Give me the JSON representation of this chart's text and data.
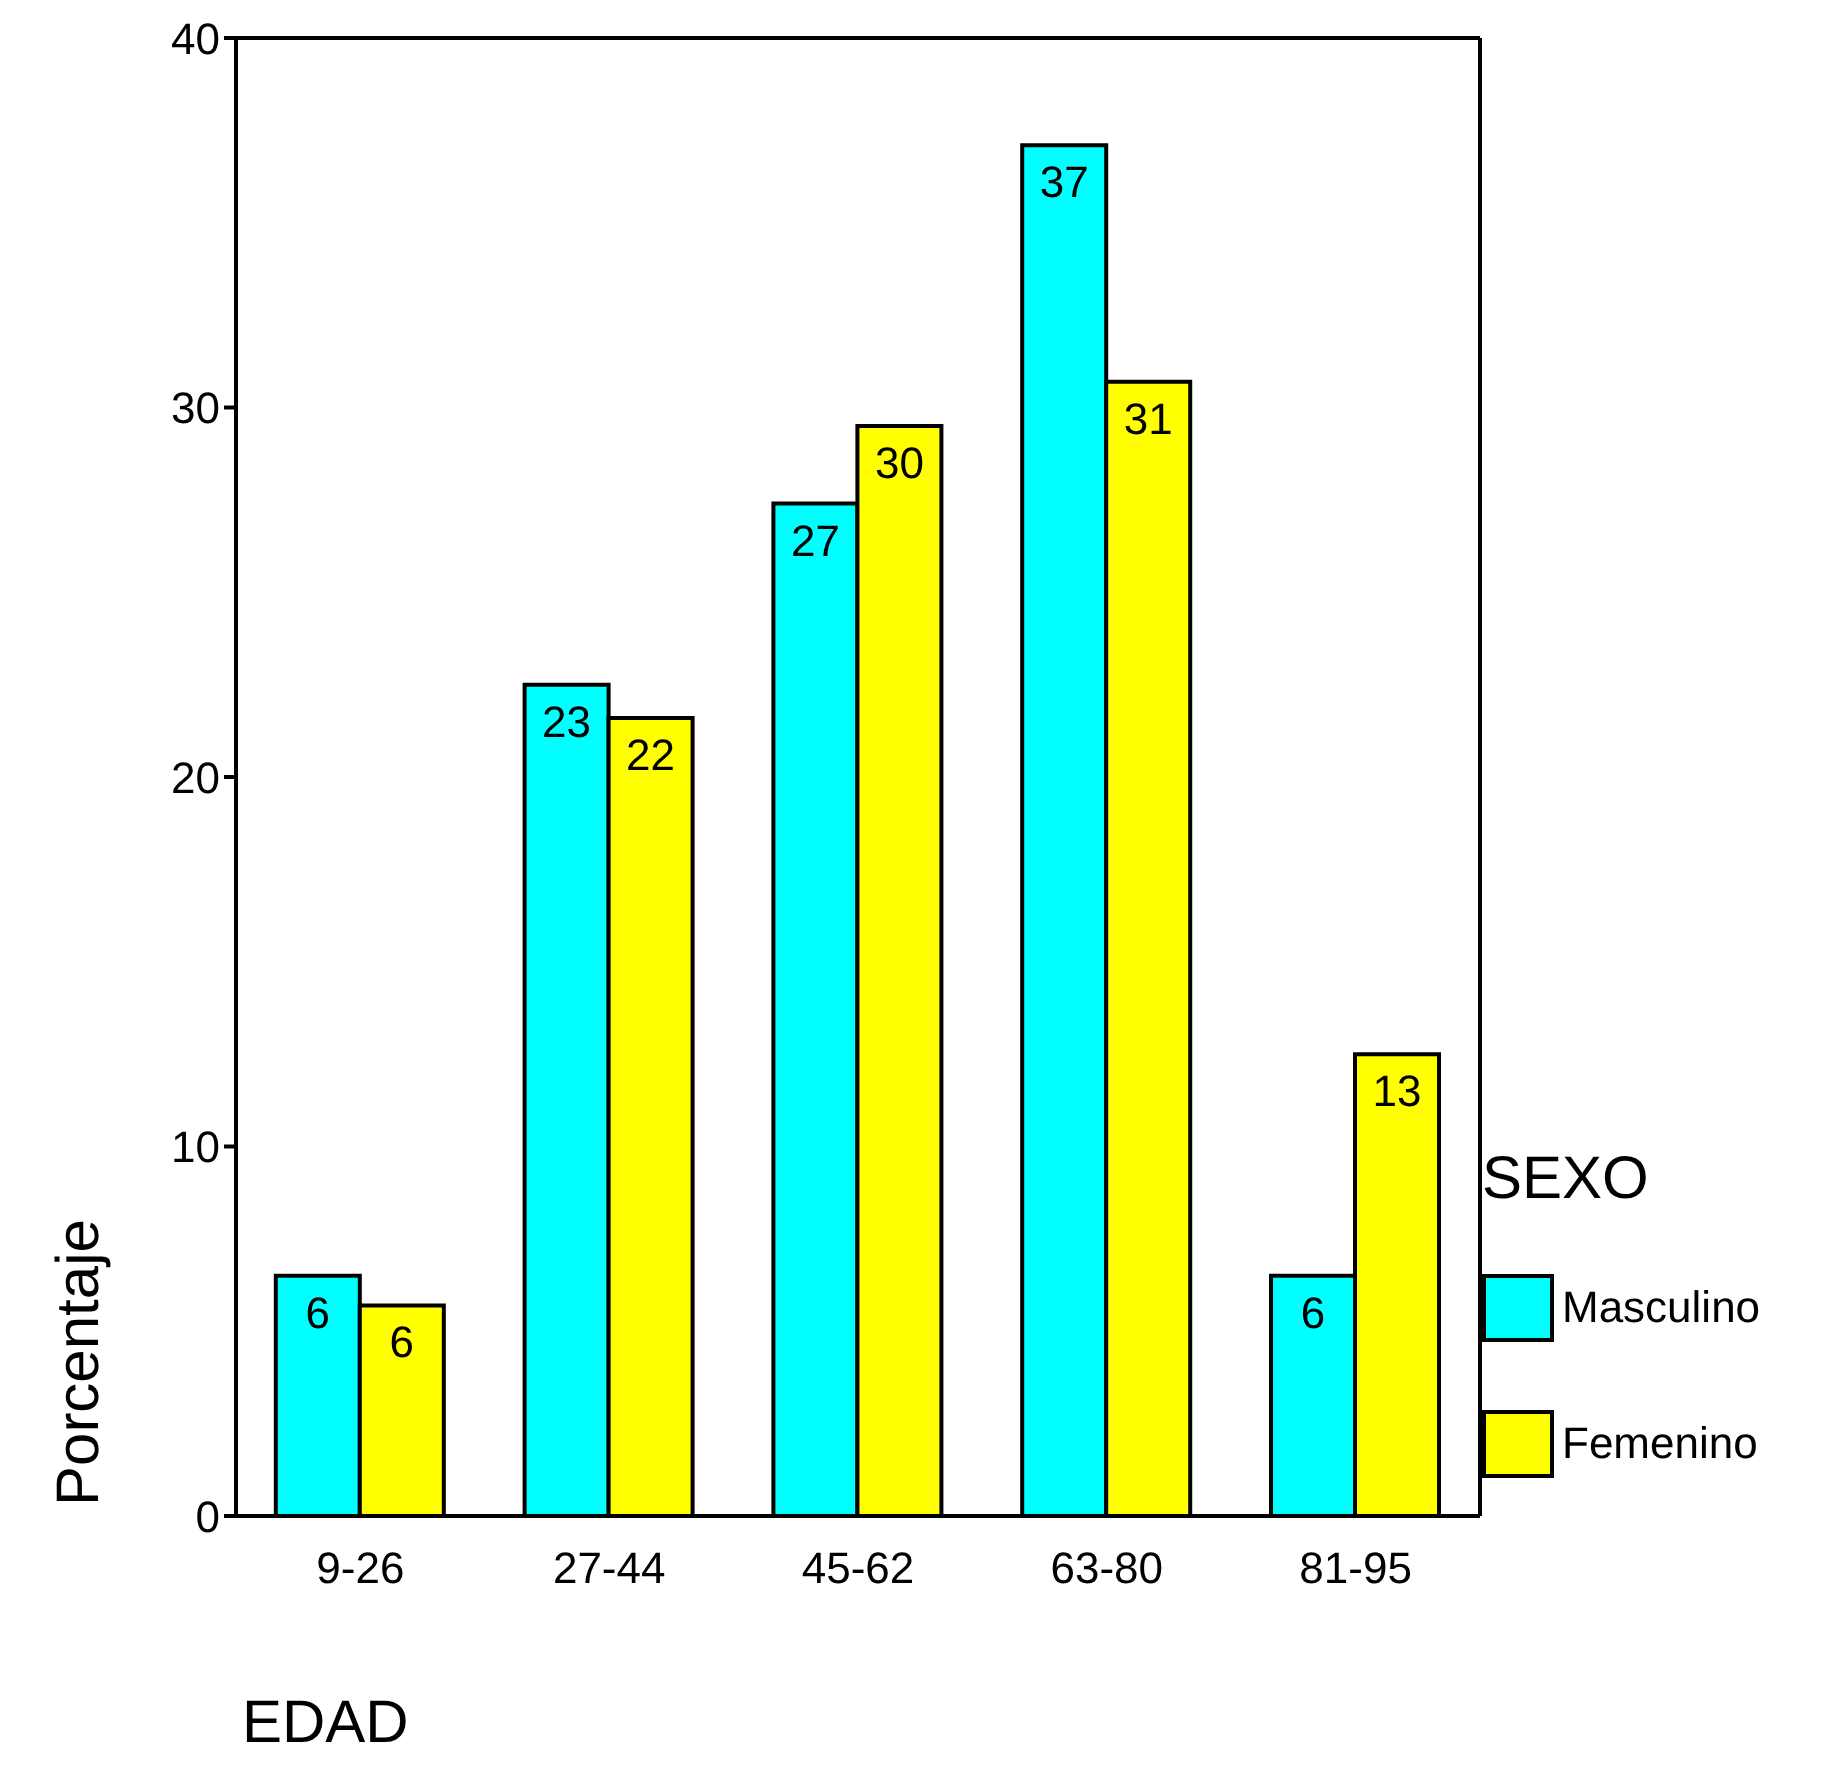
{
  "chart_data": {
    "type": "bar",
    "xlabel": "EDAD",
    "ylabel": "Porcentaje",
    "legend_title": "SEXO",
    "categories": [
      "9-26",
      "27-44",
      "45-62",
      "63-80",
      "81-95"
    ],
    "series": [
      {
        "name": "Masculino",
        "color": "#00ffff",
        "values": [
          6.5,
          22.5,
          27.4,
          37.1,
          6.5
        ],
        "value_labels": [
          "6",
          "23",
          "27",
          "37",
          "6"
        ]
      },
      {
        "name": "Femenino",
        "color": "#ffff00",
        "values": [
          5.7,
          21.6,
          29.5,
          30.7,
          12.5
        ],
        "value_labels": [
          "6",
          "22",
          "30",
          "31",
          "13"
        ]
      }
    ],
    "ylim": [
      0,
      40
    ],
    "yticks": [
      0,
      10,
      20,
      30,
      40
    ],
    "grid": false,
    "legend": "right"
  }
}
